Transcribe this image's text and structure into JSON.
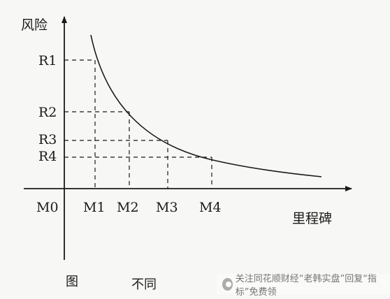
{
  "diagram": {
    "y_axis_label": "风险",
    "x_axis_label": "里程碑",
    "origin_label": "M0",
    "risk_levels": [
      {
        "label": "R1",
        "milestone": "M1"
      },
      {
        "label": "R2",
        "milestone": "M2"
      },
      {
        "label": "R3",
        "milestone": "M3"
      },
      {
        "label": "R4",
        "milestone": "M4"
      }
    ],
    "milestones": [
      "M1",
      "M2",
      "M3",
      "M4"
    ]
  },
  "caption": {
    "figure_label": "图",
    "title_visible": "不同"
  },
  "watermark": {
    "text": "关注同花顺财经“老韩实盘”回复“指标”免费领",
    "icon": "eye-icon"
  },
  "colors": {
    "ink": "#1a1a1a",
    "paper": "#f7f7f5"
  }
}
